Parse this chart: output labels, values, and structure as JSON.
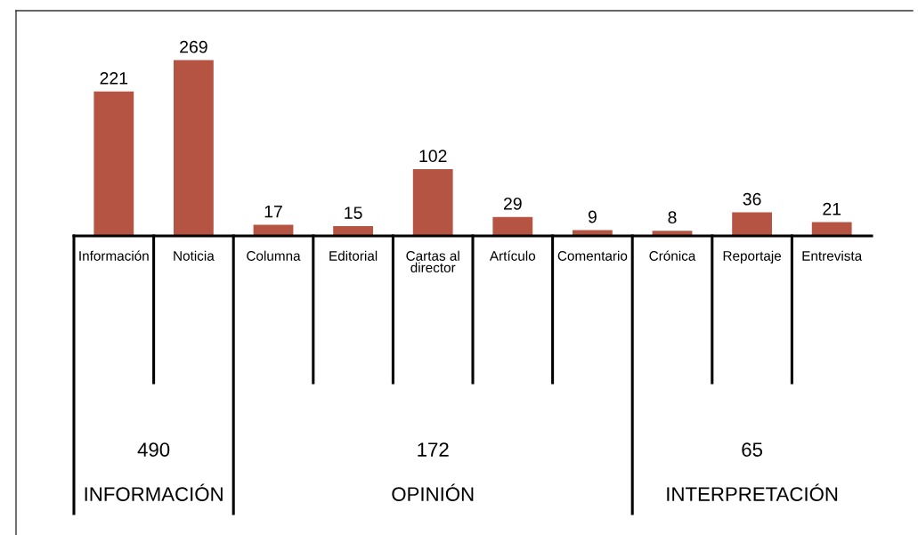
{
  "chart_data": {
    "type": "bar",
    "categories": [
      "Información",
      "Noticia",
      "Columna",
      "Editorial",
      "Cartas al\ndirector",
      "Artículo",
      "Comentario",
      "Crónica",
      "Reportaje",
      "Entrevista"
    ],
    "values": [
      221,
      269,
      17,
      15,
      102,
      29,
      9,
      8,
      36,
      21
    ],
    "color": "#b55442",
    "data_labels": true,
    "grid": false,
    "legend": false,
    "annotations": [
      "490",
      "INFORMACIÓN",
      "172",
      "OPINIÓN",
      "65",
      "INTERPRETACIÓN"
    ]
  }
}
